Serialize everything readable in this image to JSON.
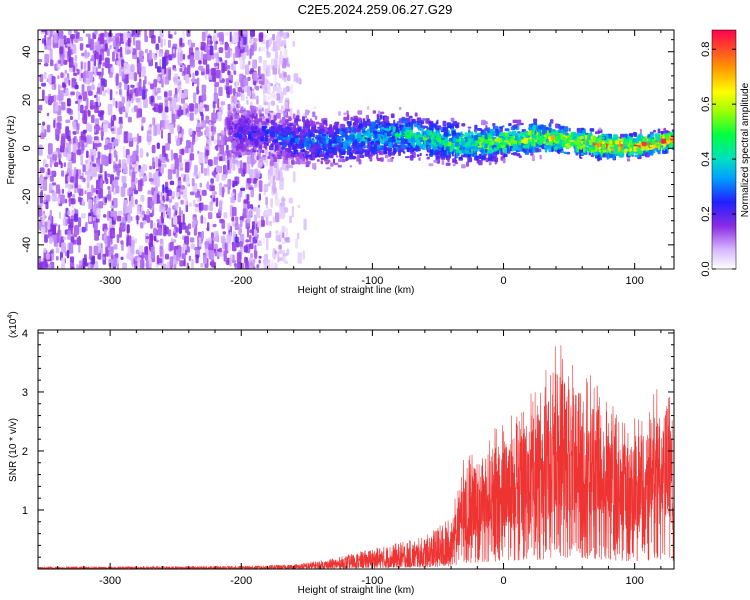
{
  "title": "C2E5.2024.259.06.27.G29",
  "chart_data": [
    {
      "type": "heatmap",
      "xlabel": "Height of straight line (km)",
      "ylabel": "Frequency (Hz)",
      "xlim": [
        -355,
        130
      ],
      "ylim": [
        -50,
        49
      ],
      "xticks": [
        -300,
        -200,
        -100,
        0,
        100
      ],
      "yticks": [
        -40,
        -20,
        0,
        20,
        40
      ],
      "colorbar": {
        "label": "Normalized spectral amplitude",
        "range": [
          0.0,
          0.87
        ],
        "ticks": [
          0.0,
          0.2,
          0.4,
          0.6,
          0.8
        ]
      },
      "bands": [
        {
          "x_range": [
            -355,
            -165
          ],
          "freq_spread": [
            -50,
            49
          ],
          "amplitude": [
            0.02,
            0.15
          ],
          "note_level": "uniform"
        },
        {
          "x_range": [
            -210,
            130
          ],
          "center_freq": [
            5,
            2
          ],
          "freq_halfwidth": [
            12,
            4
          ],
          "amplitude_trend": [
            0.15,
            0.8
          ]
        }
      ]
    },
    {
      "type": "area",
      "xlabel": "Height of straight line (km)",
      "ylabel": "SNR (10 * v/v)",
      "scale_note": "(x10",
      "scale_exp": "4",
      "xlim": [
        -355,
        130
      ],
      "ylim": [
        0,
        4.05
      ],
      "xticks": [
        -300,
        -200,
        -100,
        0,
        100
      ],
      "yticks": [
        1,
        2,
        3,
        4
      ],
      "color": "#ee3333",
      "envelope": [
        {
          "x": -355,
          "y": 0.04
        },
        {
          "x": -200,
          "y": 0.05
        },
        {
          "x": -160,
          "y": 0.08
        },
        {
          "x": -130,
          "y": 0.18
        },
        {
          "x": -100,
          "y": 0.35
        },
        {
          "x": -80,
          "y": 0.45
        },
        {
          "x": -60,
          "y": 0.55
        },
        {
          "x": -40,
          "y": 0.9
        },
        {
          "x": -30,
          "y": 1.9
        },
        {
          "x": -20,
          "y": 2.1
        },
        {
          "x": -5,
          "y": 2.5
        },
        {
          "x": 10,
          "y": 2.7
        },
        {
          "x": 30,
          "y": 3.2
        },
        {
          "x": 40,
          "y": 4.05
        },
        {
          "x": 55,
          "y": 3.6
        },
        {
          "x": 75,
          "y": 3.1
        },
        {
          "x": 95,
          "y": 2.5
        },
        {
          "x": 110,
          "y": 2.8
        },
        {
          "x": 125,
          "y": 3.5
        },
        {
          "x": 130,
          "y": 2.2
        }
      ]
    }
  ]
}
